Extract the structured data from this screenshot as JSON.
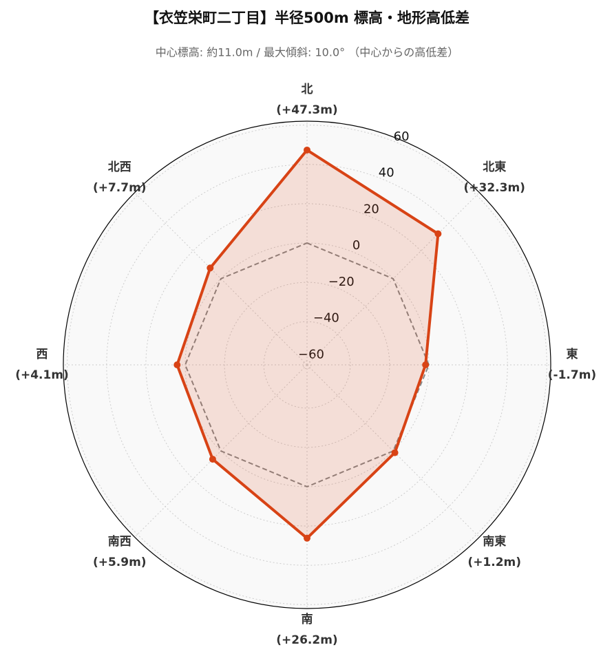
{
  "chart_data": {
    "type": "radar",
    "title": "【衣笠栄町二丁目】半径500m 標高・地形高低差",
    "subtitle": "中心標高: 約11.0m / 最大傾斜: 10.0° （中心からの高低差）",
    "categories": [
      "北",
      "北東",
      "東",
      "南東",
      "南",
      "南西",
      "西",
      "北西"
    ],
    "values": [
      47.3,
      32.3,
      -1.7,
      1.2,
      26.2,
      5.9,
      4.1,
      7.7
    ],
    "value_labels": [
      "(+47.3m)",
      "(+32.3m)",
      "(-1.7m)",
      "(+1.2m)",
      "(+26.2m)",
      "(+5.9m)",
      "(+4.1m)",
      "(+7.7m)"
    ],
    "color": "#d84315",
    "baseline": 0,
    "ylim": [
      -62,
      62
    ],
    "yticks": [
      {
        "value": -60,
        "label": "−60"
      },
      {
        "value": -40,
        "label": "−40"
      },
      {
        "value": -20,
        "label": "−20"
      },
      0,
      20,
      40,
      60
    ],
    "grid": true
  }
}
